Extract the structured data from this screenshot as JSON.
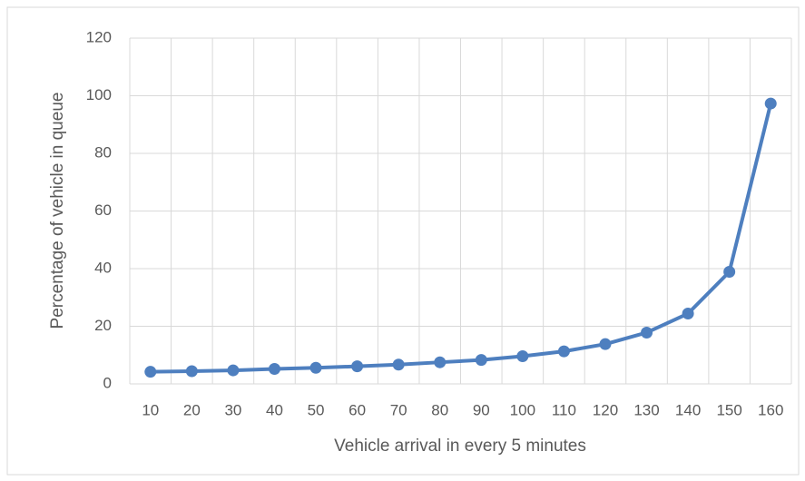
{
  "chart_data": {
    "type": "line",
    "x_label": "Vehicle arrival in every 5 minutes",
    "y_label": "Percentage of vehicle in queue",
    "categories": [
      10,
      20,
      30,
      40,
      50,
      60,
      70,
      80,
      90,
      100,
      110,
      120,
      130,
      140,
      150,
      160
    ],
    "values": [
      4.2,
      4.4,
      4.7,
      5.2,
      5.6,
      6.1,
      6.7,
      7.5,
      8.3,
      9.6,
      11.3,
      13.8,
      17.8,
      24.4,
      38.9,
      97.3
    ],
    "color": "#4e7fbf",
    "ylim": [
      0,
      120
    ],
    "yticks": [
      0,
      20,
      40,
      60,
      80,
      100,
      120
    ],
    "grid": true
  }
}
